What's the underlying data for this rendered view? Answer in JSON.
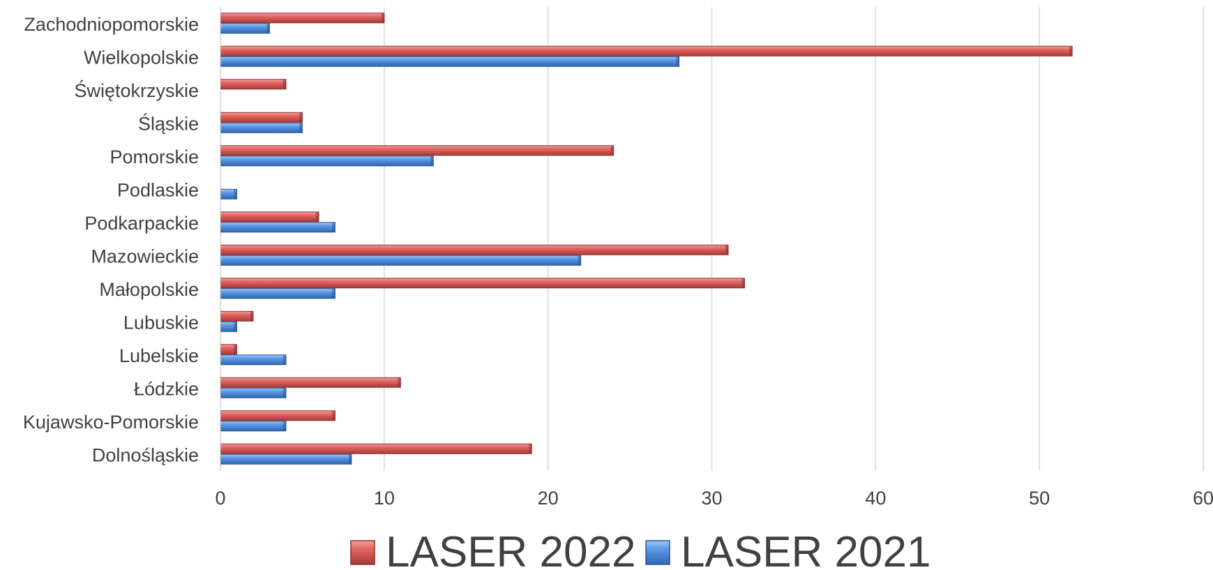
{
  "chart_data": {
    "type": "bar",
    "orientation": "horizontal",
    "title": "",
    "xlabel": "",
    "ylabel": "",
    "xlim": [
      0,
      60
    ],
    "x_ticks": [
      0,
      10,
      20,
      30,
      40,
      50,
      60
    ],
    "grid": "vertical",
    "legend_position": "bottom",
    "categories": [
      "Zachodniopomorskie",
      "Wielkopolskie",
      "Świętokrzyskie",
      "Śląskie",
      "Pomorskie",
      "Podlaskie",
      "Podkarpackie",
      "Mazowieckie",
      "Małopolskie",
      "Lubuskie",
      "Lubelskie",
      "Łódzkie",
      "Kujawsko-Pomorskie",
      "Dolnośląskie"
    ],
    "series": [
      {
        "name": "LASER 2022",
        "color": "#c0504d",
        "values": [
          10,
          52,
          4,
          5,
          24,
          0,
          6,
          31,
          32,
          2,
          1,
          11,
          7,
          19
        ]
      },
      {
        "name": "LASER 2021",
        "color": "#4f81bd",
        "values": [
          3,
          28,
          0,
          5,
          13,
          1,
          7,
          22,
          7,
          1,
          4,
          4,
          4,
          8
        ]
      }
    ]
  }
}
